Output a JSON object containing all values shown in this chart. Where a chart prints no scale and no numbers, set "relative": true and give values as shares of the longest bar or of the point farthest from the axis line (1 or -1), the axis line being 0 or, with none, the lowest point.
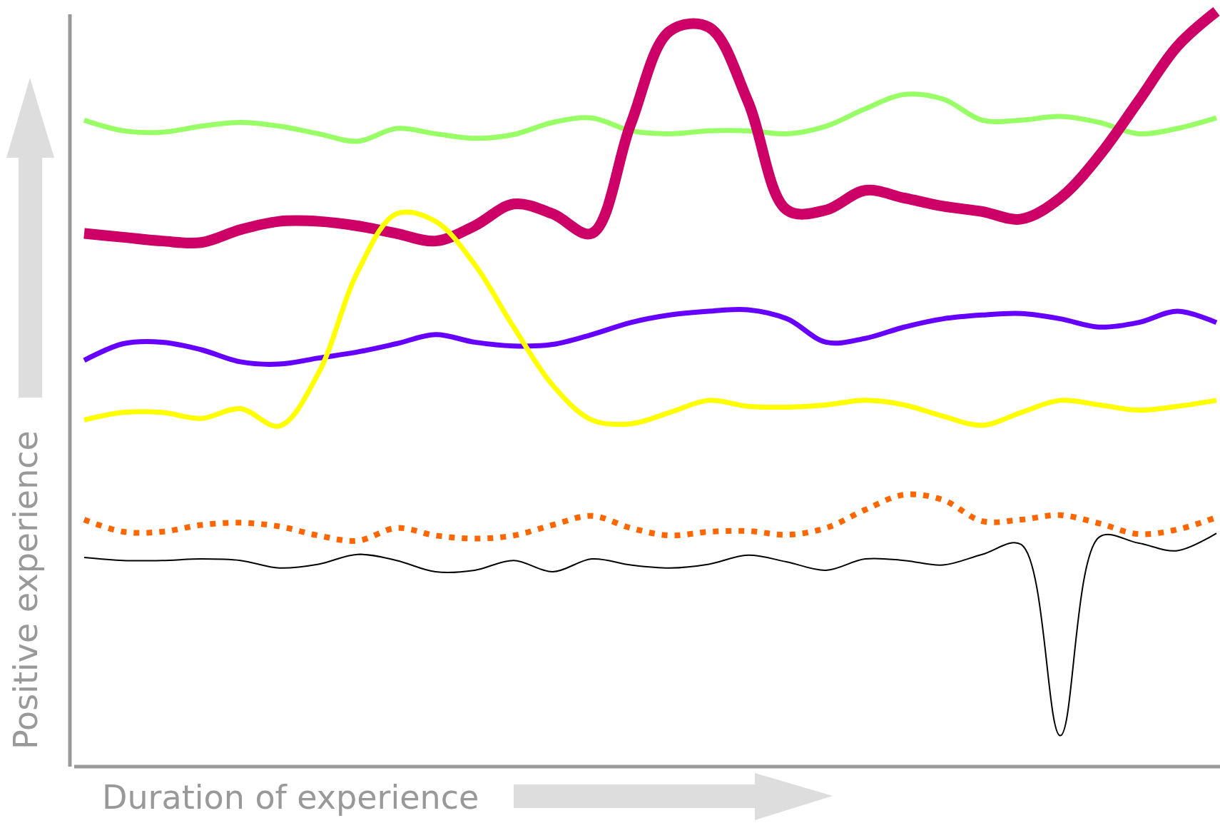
{
  "chart_data": {
    "type": "line",
    "relative": true,
    "xlabel": "Duration of experience",
    "ylabel": "Positive experience",
    "categories": [
      null,
      null,
      null,
      null,
      null,
      null,
      null,
      null,
      null,
      null,
      null,
      null,
      null,
      null,
      null,
      null,
      null,
      null,
      null,
      null,
      null,
      null,
      null,
      null,
      null,
      null,
      null,
      null,
      null,
      null
    ],
    "series": [
      {
        "color": "#99ff66",
        "values": [
          0.856,
          0.842,
          0.84,
          0.848,
          0.853,
          0.848,
          0.838,
          0.828,
          0.845,
          0.838,
          0.832,
          0.837,
          0.853,
          0.859,
          0.842,
          0.838,
          0.842,
          0.842,
          0.838,
          0.848,
          0.871,
          0.89,
          0.884,
          0.856,
          0.856,
          0.861,
          0.853,
          0.838,
          0.845,
          0.859
        ]
      },
      {
        "color": "#cc0066",
        "values": [
          0.706,
          0.701,
          0.696,
          0.694,
          0.711,
          0.722,
          0.722,
          0.716,
          0.706,
          0.696,
          0.716,
          0.745,
          0.732,
          0.706,
          0.851,
          0.974,
          0.979,
          0.881,
          0.737,
          0.737,
          0.763,
          0.753,
          0.742,
          0.735,
          0.725,
          0.753,
          0.809,
          0.881,
          0.954,
          1
        ]
      },
      {
        "color": "#6600ff",
        "values": [
          0.538,
          0.56,
          0.562,
          0.552,
          0.536,
          0.533,
          0.541,
          0.549,
          0.56,
          0.572,
          0.562,
          0.557,
          0.559,
          0.572,
          0.588,
          0.598,
          0.603,
          0.605,
          0.593,
          0.562,
          0.567,
          0.582,
          0.593,
          0.598,
          0.6,
          0.593,
          0.582,
          0.588,
          0.603,
          0.588
        ]
      },
      {
        "color": "#ffff00",
        "values": [
          0.459,
          0.469,
          0.469,
          0.461,
          0.474,
          0.451,
          0.521,
          0.655,
          0.732,
          0.722,
          0.665,
          0.582,
          0.505,
          0.459,
          0.454,
          0.469,
          0.485,
          0.477,
          0.476,
          0.479,
          0.485,
          0.479,
          0.464,
          0.452,
          0.469,
          0.485,
          0.479,
          0.472,
          0.477,
          0.485
        ]
      },
      {
        "color": "#ff6600",
        "line_style": "dotted",
        "values": [
          0.327,
          0.311,
          0.311,
          0.32,
          0.323,
          0.318,
          0.306,
          0.299,
          0.316,
          0.306,
          0.302,
          0.306,
          0.32,
          0.332,
          0.316,
          0.306,
          0.311,
          0.312,
          0.307,
          0.316,
          0.34,
          0.36,
          0.353,
          0.325,
          0.327,
          0.333,
          0.322,
          0.308,
          0.314,
          0.33
        ]
      },
      {
        "color": "#000000",
        "values": [
          0.277,
          0.273,
          0.273,
          0.275,
          0.273,
          0.263,
          0.268,
          0.281,
          0.273,
          0.258,
          0.26,
          0.273,
          0.258,
          0.275,
          0.267,
          0.263,
          0.268,
          0.28,
          0.271,
          0.26,
          0.275,
          0.273,
          0.267,
          0.281,
          0.294,
          0.041,
          0.304,
          0.296,
          0.286,
          0.309
        ]
      }
    ]
  }
}
